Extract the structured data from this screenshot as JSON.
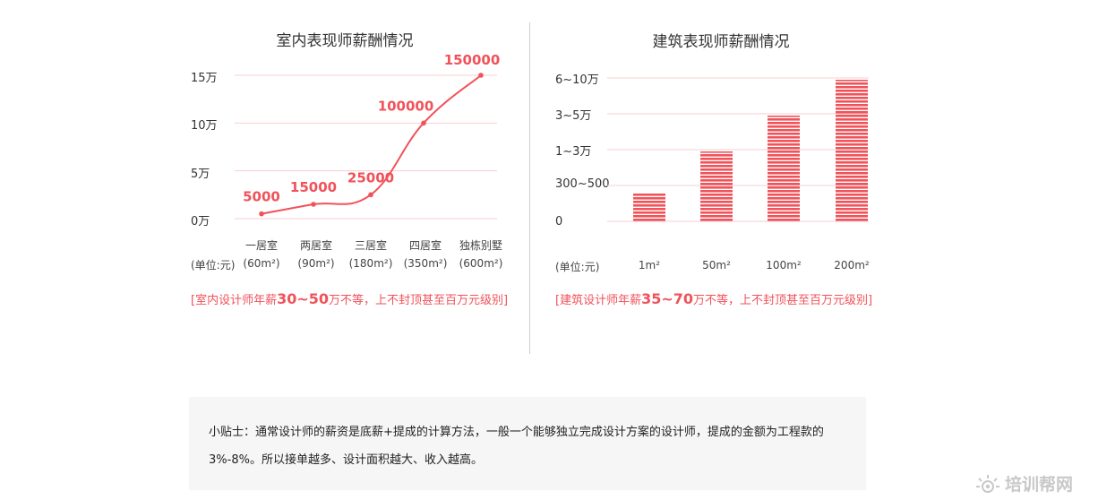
{
  "chart_data": [
    {
      "type": "line",
      "title": "室内表现师薪酬情况",
      "unit_label": "(单位:元)",
      "y_ticks": [
        "15万",
        "10万",
        "5万",
        "0万"
      ],
      "y_tick_values": [
        150000,
        100000,
        50000,
        0
      ],
      "ylim": [
        0,
        150000
      ],
      "categories": [
        "一居室",
        "两居室",
        "三居室",
        "四居室",
        "独栋别墅"
      ],
      "sub_categories": [
        "(60m²)",
        "(90m²)",
        "(180m²)",
        "(350m²)",
        "(600m²)"
      ],
      "values": [
        5000,
        15000,
        25000,
        100000,
        150000
      ],
      "data_labels": [
        "5000",
        "15000",
        "25000",
        "100000",
        "150000"
      ],
      "grid": true,
      "color": "#f0525a",
      "note": {
        "pre": "[室内设计师年薪",
        "bold": "30~50",
        "post": "万不等，上不封顶甚至百万元级别]"
      }
    },
    {
      "type": "bar",
      "title": "建筑表现师薪酬情况",
      "unit_label": "(单位:元)",
      "y_ticks": [
        "6~10万",
        "3~5万",
        "1~3万",
        "300~500",
        "0"
      ],
      "categories": [
        "1m²",
        "50m²",
        "100m²",
        "200m²"
      ],
      "values": [
        0.8,
        1.95,
        2.95,
        3.95
      ],
      "grid": true,
      "color": "#f0525a",
      "note": {
        "pre": "[建筑设计师年薪",
        "bold": "35~70",
        "post": "万不等，上不封顶甚至百万元级别]"
      }
    }
  ],
  "tip": {
    "line1": "小贴士：通常设计师的薪资是底薪+提成的计算方法，一般一个能够独立完成设计方案的设计师，提成的金额为工程款的",
    "line2": "3%-8%。所以接单越多、设计面积越大、收入越高。"
  },
  "watermark": {
    "text": "培训帮网",
    "icon": "sun-eye-icon"
  }
}
